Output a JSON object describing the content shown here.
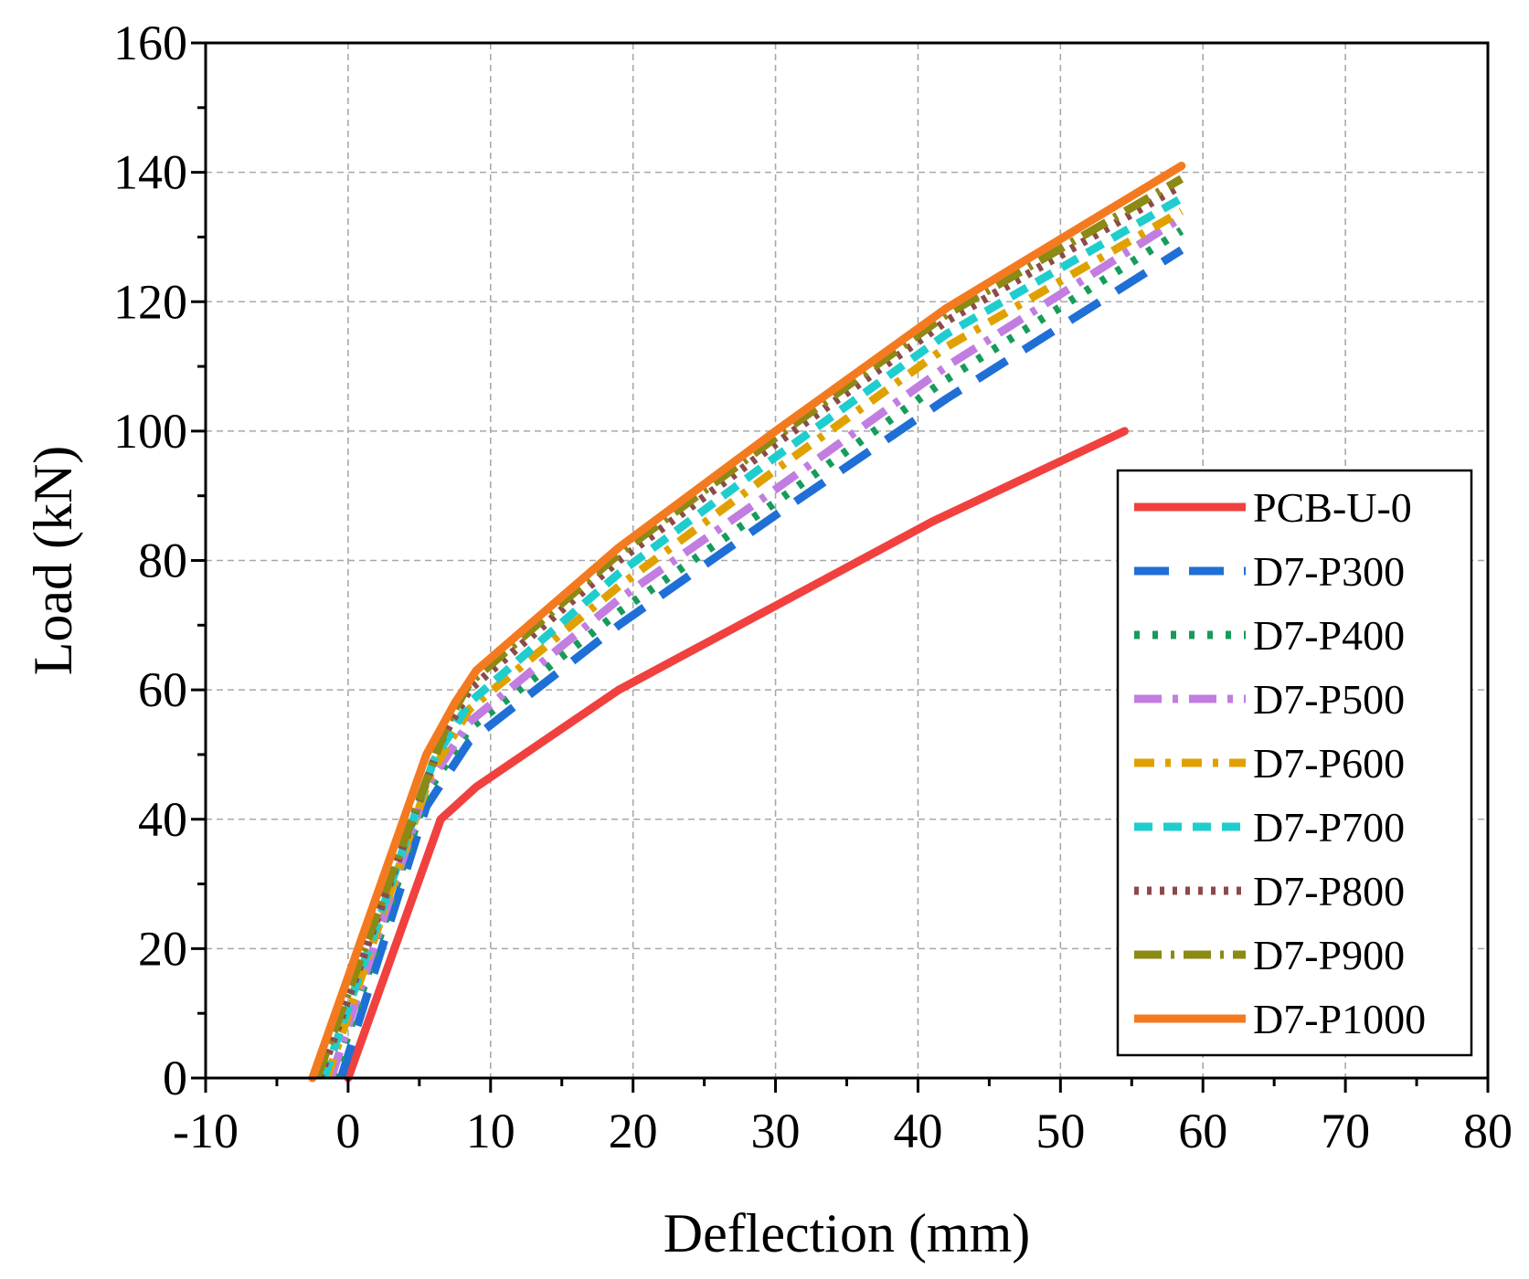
{
  "chart_data": {
    "type": "line",
    "title": "",
    "xlabel": "Deflection (mm)",
    "ylabel": "Load (kN)",
    "xlim": [
      -10,
      80
    ],
    "ylim": [
      0,
      160
    ],
    "xticks": [
      -10,
      0,
      10,
      20,
      30,
      40,
      50,
      60,
      70,
      80
    ],
    "yticks": [
      0,
      20,
      40,
      60,
      80,
      100,
      120,
      140,
      160
    ],
    "x_minor_step": 5,
    "y_minor_step": 10,
    "grid": true,
    "legend_position": "bottom-right",
    "series": [
      {
        "name": "PCB-U-0",
        "color": "#f0413f",
        "dash": "solid",
        "x": [
          0,
          6.5,
          9,
          19,
          30,
          41,
          54.5
        ],
        "y": [
          0,
          40,
          45,
          60,
          73,
          86,
          100
        ]
      },
      {
        "name": "D7-P300",
        "color": "#1f6fd6",
        "dash": "long-dash",
        "x": [
          -0.5,
          5.5,
          8.5,
          19,
          30,
          42,
          58.5
        ],
        "y": [
          0,
          42,
          52,
          70,
          87,
          105,
          128
        ]
      },
      {
        "name": "D7-P400",
        "color": "#169c5a",
        "dash": "dot",
        "x": [
          -1,
          5.5,
          8.5,
          19,
          30,
          42,
          58.5
        ],
        "y": [
          0,
          44,
          54,
          72,
          89,
          108,
          131
        ]
      },
      {
        "name": "D7-P500",
        "color": "#c27de0",
        "dash": "dash-dot",
        "x": [
          -1.2,
          5.5,
          8.5,
          19,
          30,
          42,
          58.5
        ],
        "y": [
          0,
          45,
          55,
          74,
          91,
          110,
          133
        ]
      },
      {
        "name": "D7-P600",
        "color": "#e0a100",
        "dash": "dash-dot-short",
        "x": [
          -1.5,
          5.8,
          8.5,
          19,
          30,
          42,
          58.5
        ],
        "y": [
          0,
          47,
          57,
          76,
          94,
          113,
          134
        ]
      },
      {
        "name": "D7-P700",
        "color": "#1fcdcd",
        "dash": "dash",
        "x": [
          -1.7,
          6,
          8.5,
          19,
          30,
          42,
          58.5
        ],
        "y": [
          0,
          49,
          58,
          78,
          96,
          115,
          136
        ]
      },
      {
        "name": "D7-P800",
        "color": "#8c4a4a",
        "dash": "fine-dot",
        "x": [
          -2,
          6.5,
          8.5,
          19,
          30,
          42,
          58.5
        ],
        "y": [
          0,
          52,
          60,
          80,
          98,
          117,
          138
        ]
      },
      {
        "name": "D7-P900",
        "color": "#8a8a14",
        "dash": "dash-dot-long",
        "x": [
          -2.2,
          7,
          8.5,
          19,
          30,
          42,
          58.5
        ],
        "y": [
          0,
          55,
          61,
          81,
          99,
          118,
          139
        ]
      },
      {
        "name": "D7-P1000",
        "color": "#f47a20",
        "dash": "solid",
        "x": [
          -2.5,
          5.5,
          7.5,
          9,
          19,
          30,
          42,
          58.5
        ],
        "y": [
          0,
          50,
          58,
          63,
          82,
          100,
          119,
          141
        ]
      }
    ]
  }
}
